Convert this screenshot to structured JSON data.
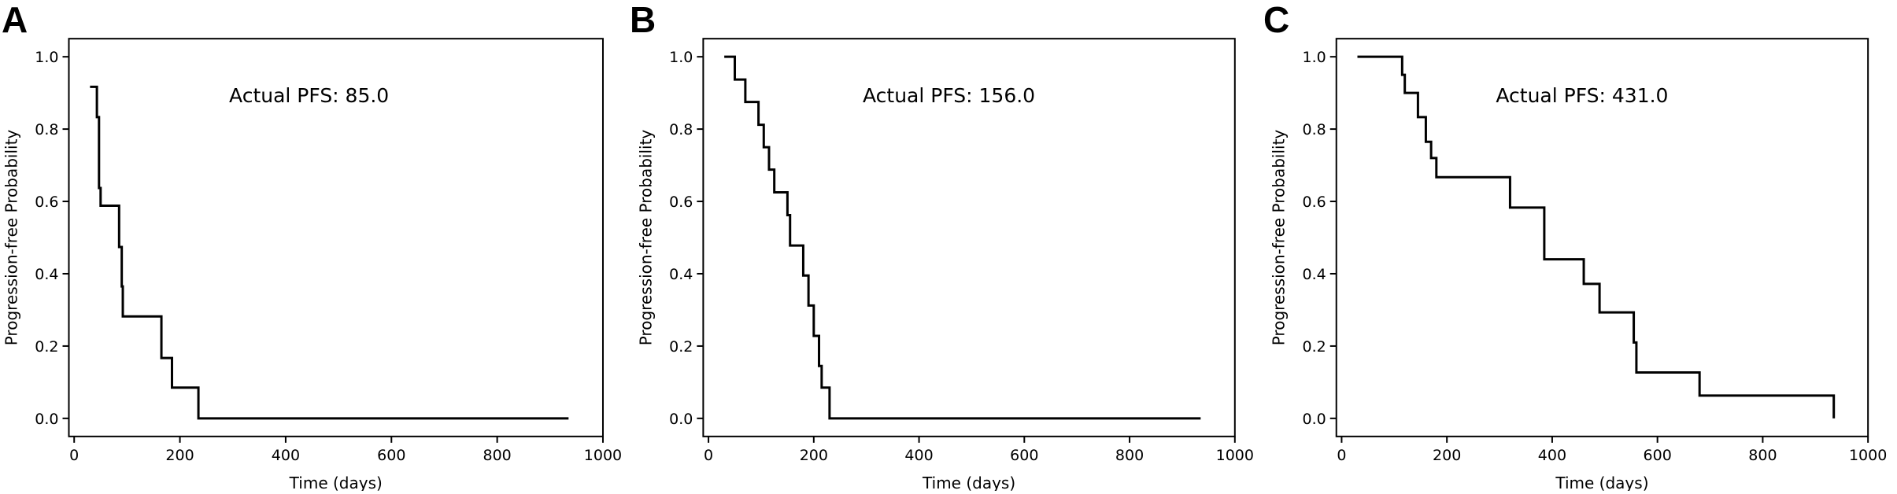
{
  "chart_data": [
    {
      "panel_label": "A",
      "type": "line",
      "step": true,
      "annotation": "Actual PFS: 85.0",
      "xlabel": "Time (days)",
      "ylabel": "Progression-free Probability",
      "xlim": [
        -10,
        1000
      ],
      "ylim": [
        -0.05,
        1.05
      ],
      "xticks": [
        0,
        200,
        400,
        600,
        800,
        1000
      ],
      "yticks": [
        "0.0",
        "0.2",
        "0.4",
        "0.6",
        "0.8",
        "1.0"
      ],
      "line_color": "#000000",
      "x": [
        30,
        40,
        43,
        47,
        50,
        85,
        90,
        92,
        95,
        165,
        185,
        235,
        935
      ],
      "y": [
        0.917,
        0.917,
        0.833,
        0.637,
        0.588,
        0.474,
        0.365,
        0.282,
        0.282,
        0.167,
        0.085,
        0.0,
        0.0
      ]
    },
    {
      "panel_label": "B",
      "type": "line",
      "step": true,
      "annotation": "Actual PFS: 156.0",
      "xlabel": "Time (days)",
      "ylabel": "Progression-free Probability",
      "xlim": [
        -10,
        1000
      ],
      "ylim": [
        -0.05,
        1.05
      ],
      "xticks": [
        0,
        200,
        400,
        600,
        800,
        1000
      ],
      "yticks": [
        "0.0",
        "0.2",
        "0.4",
        "0.6",
        "0.8",
        "1.0"
      ],
      "line_color": "#000000",
      "x": [
        30,
        50,
        70,
        95,
        105,
        115,
        125,
        150,
        155,
        180,
        190,
        200,
        210,
        215,
        222,
        230,
        935
      ],
      "y": [
        1.0,
        0.937,
        0.875,
        0.812,
        0.75,
        0.688,
        0.625,
        0.562,
        0.478,
        0.395,
        0.312,
        0.228,
        0.145,
        0.085,
        0.085,
        0.0,
        0.0
      ]
    },
    {
      "panel_label": "C",
      "type": "line",
      "step": true,
      "annotation": "Actual PFS: 431.0",
      "xlabel": "Time (days)",
      "ylabel": "Progression-free Probability",
      "xlim": [
        -10,
        1000
      ],
      "ylim": [
        -0.05,
        1.05
      ],
      "xticks": [
        0,
        200,
        400,
        600,
        800,
        1000
      ],
      "yticks": [
        "0.0",
        "0.2",
        "0.4",
        "0.6",
        "0.8",
        "1.0"
      ],
      "line_color": "#000000",
      "x": [
        30,
        115,
        120,
        125,
        145,
        160,
        170,
        180,
        320,
        385,
        445,
        460,
        490,
        555,
        560,
        680,
        935
      ],
      "y": [
        1.0,
        0.95,
        0.9,
        0.9,
        0.833,
        0.765,
        0.72,
        0.667,
        0.583,
        0.44,
        0.44,
        0.372,
        0.293,
        0.21,
        0.127,
        0.063,
        0.0
      ]
    }
  ]
}
